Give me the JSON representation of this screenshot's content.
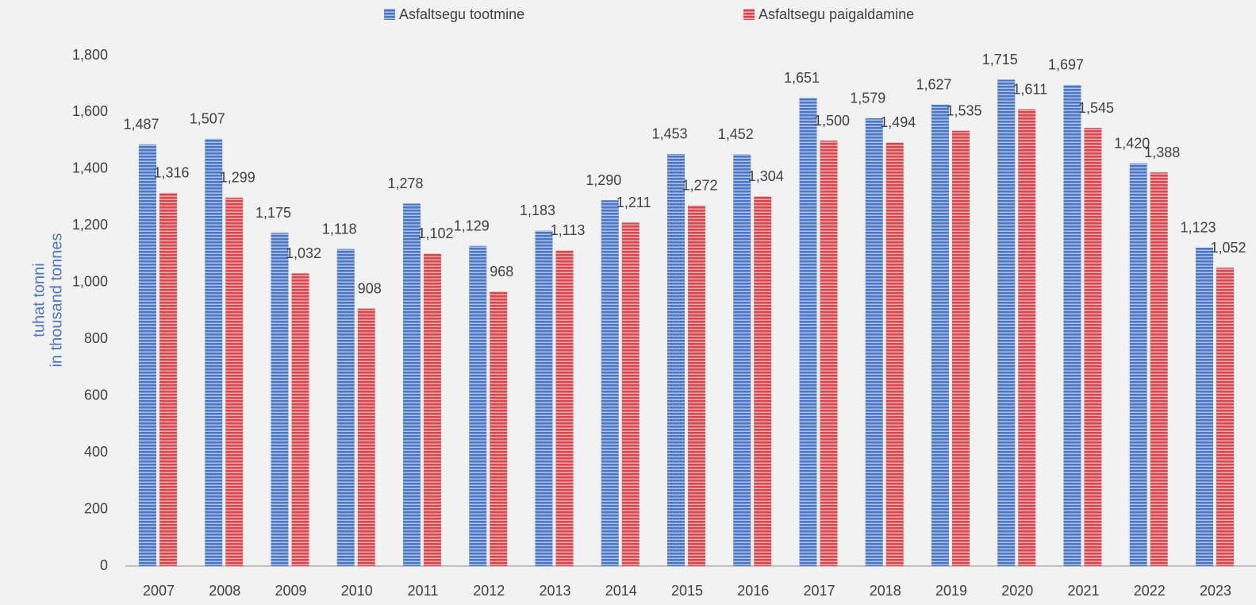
{
  "chart_data": {
    "type": "bar",
    "y_label": [
      "tuhat tonni",
      "in thousand tonnes"
    ],
    "categories": [
      "2007",
      "2008",
      "2009",
      "2010",
      "2011",
      "2012",
      "2013",
      "2014",
      "2015",
      "2016",
      "2017",
      "2018",
      "2019",
      "2020",
      "2021",
      "2022",
      "2023"
    ],
    "series": [
      {
        "name": "Asfaltsegu tootmine",
        "color": "#4a76c6",
        "values": [
          1487,
          1507,
          1175,
          1118,
          1278,
          1129,
          1183,
          1290,
          1453,
          1452,
          1651,
          1579,
          1627,
          1715,
          1697,
          1420,
          1123
        ],
        "value_labels": [
          "1,487",
          "1,507",
          "1,175",
          "1,118",
          "1,278",
          "1,129",
          "1,183",
          "1,290",
          "1,453",
          "1,452",
          "1,651",
          "1,579",
          "1,627",
          "1,715",
          "1,697",
          "1,420",
          "1,123"
        ]
      },
      {
        "name": "Asfaltsegu paigaldamine",
        "color": "#d9464c",
        "values": [
          1316,
          1299,
          1032,
          908,
          1102,
          968,
          1113,
          1211,
          1272,
          1304,
          1500,
          1494,
          1535,
          1611,
          1545,
          1388,
          1052
        ],
        "value_labels": [
          "1,316",
          "1,299",
          "1,032",
          "908",
          "1,102",
          "968",
          "1,113",
          "1,211",
          "1,272",
          "1,304",
          "1,500",
          "1,494",
          "1,535",
          "1,611",
          "1,545",
          "1,388",
          "1,052"
        ]
      }
    ],
    "ylim": [
      0,
      1800
    ],
    "yticks": [
      0,
      200,
      400,
      600,
      800,
      {
        "value": 1000,
        "label": "1,000"
      },
      {
        "value": 1200,
        "label": "1,200"
      },
      {
        "value": 1400,
        "label": "1,400"
      },
      {
        "value": 1600,
        "label": "1,600"
      },
      {
        "value": 1800,
        "label": "1,800"
      }
    ],
    "grid": false,
    "legend": "top"
  }
}
